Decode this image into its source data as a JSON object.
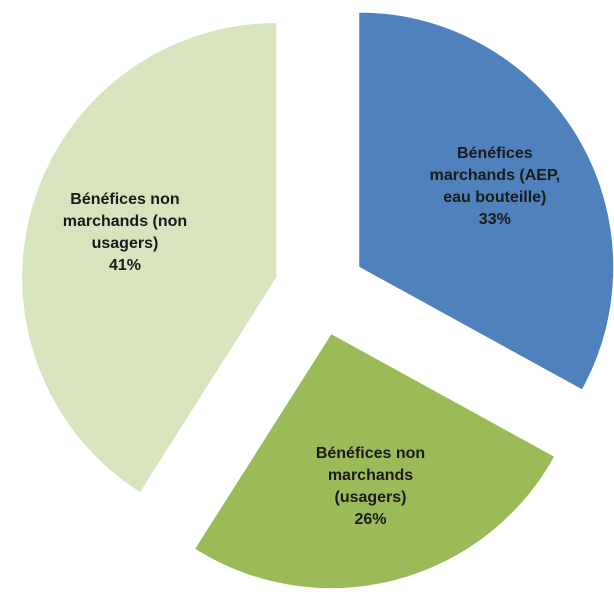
{
  "chart_data": {
    "type": "pie",
    "categories": [
      "Bénéfices marchands (AEP, eau bouteille)",
      "Bénéfices non marchands (usagers)",
      "Bénéfices non marchands (non usagers)"
    ],
    "values": [
      33,
      26,
      41
    ],
    "value_labels": [
      "33%",
      "26%",
      "41%"
    ],
    "colors": [
      "#4f81bd",
      "#9bbb59",
      "#d7e4bd"
    ]
  }
}
